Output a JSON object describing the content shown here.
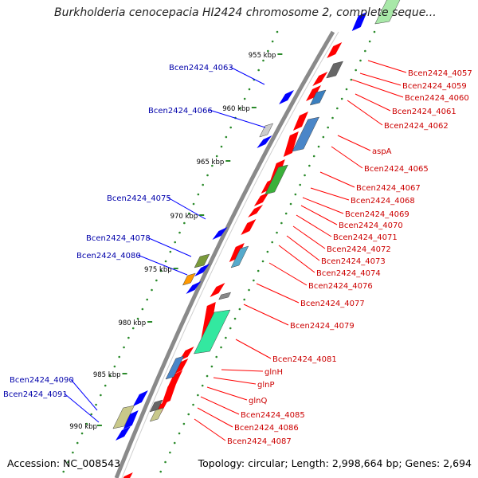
{
  "title": "Burkholderia cenocepacia HI2424 chromosome 2, complete seque...",
  "footer": {
    "accession": "Accession: NC_008543",
    "summary": "Topology: circular; Length: 2,998,664 bp; Genes: 2,694"
  },
  "colors": {
    "backbone": "#8a8a8a",
    "forward_strand": "#ff0000",
    "reverse_strand": "#0000ff",
    "reverse_label": "#0000aa",
    "forward_label": "#cc0000",
    "dotted_ring": "#2a8a2a"
  },
  "scale_labels": [
    "955 kbp",
    "960 kbp",
    "965 kbp",
    "970 kbp",
    "975 kbp",
    "980 kbp",
    "985 kbp",
    "990 kbp"
  ],
  "left_labels": [
    "Bcen2424_4063",
    "Bcen2424_4066",
    "Bcen2424_4075",
    "Bcen2424_4078",
    "Bcen2424_4080",
    "Bcen2424_4090",
    "Bcen2424_4091"
  ],
  "right_labels": [
    "Bcen2424_4057",
    "Bcen2424_4059",
    "Bcen2424_4060",
    "Bcen2424_4061",
    "Bcen2424_4062",
    "aspA",
    "Bcen2424_4065",
    "Bcen2424_4067",
    "Bcen2424_4068",
    "Bcen2424_4069",
    "Bcen2424_4070",
    "Bcen2424_4071",
    "Bcen2424_4072",
    "Bcen2424_4073",
    "Bcen2424_4074",
    "Bcen2424_4076",
    "Bcen2424_4077",
    "Bcen2424_4079",
    "Bcen2424_4081",
    "glnH",
    "glnP",
    "glnQ",
    "Bcen2424_4085",
    "Bcen2424_4086",
    "Bcen2424_4087"
  ]
}
